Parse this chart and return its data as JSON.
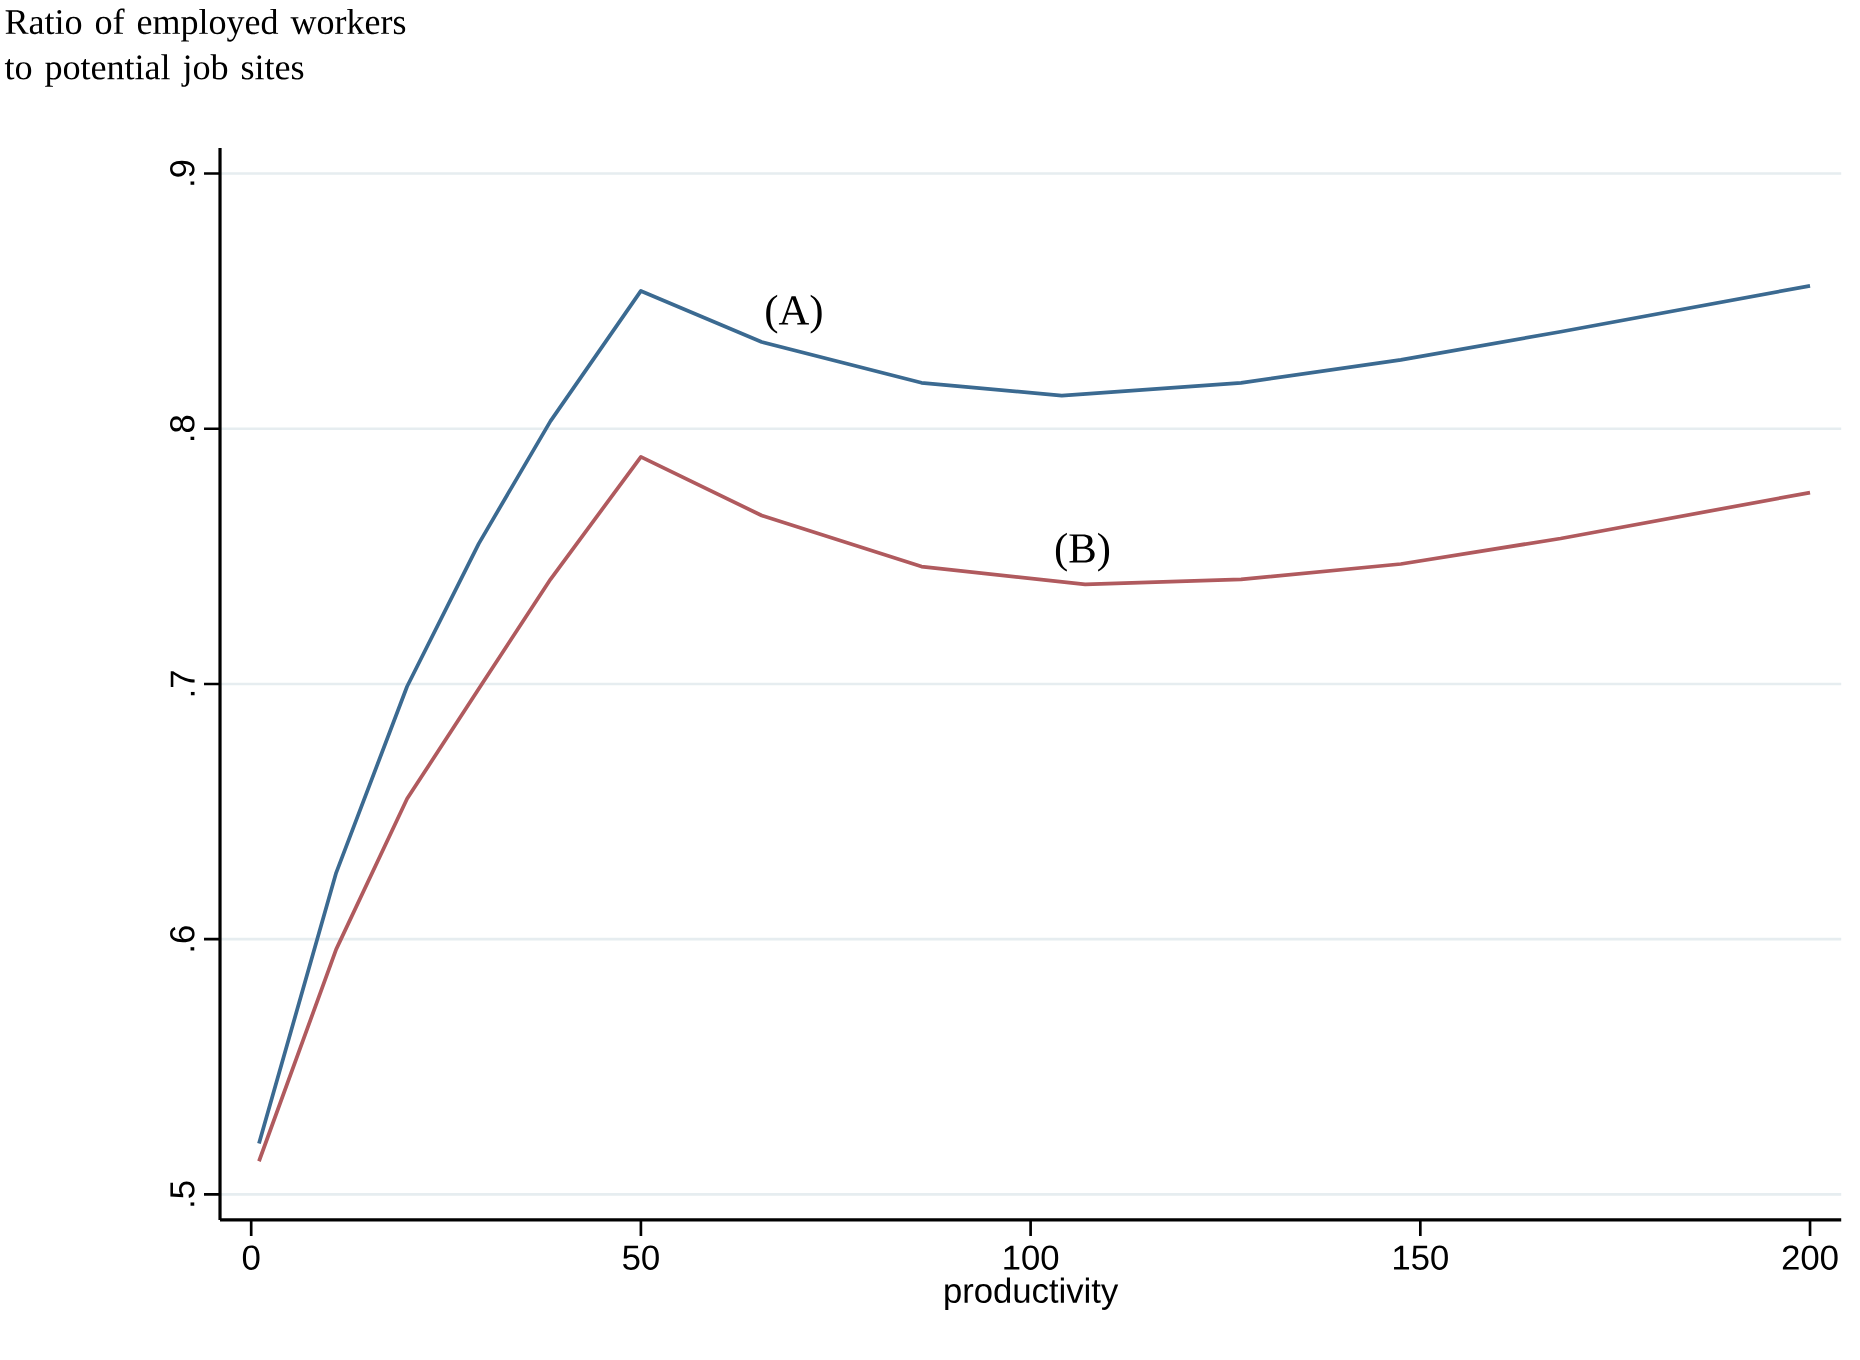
{
  "chart_data": {
    "type": "line",
    "xlabel": "productivity",
    "xlim": [
      -4,
      204
    ],
    "xticks": [
      0,
      50,
      100,
      150,
      200
    ],
    "ylim": [
      0.49,
      0.91
    ],
    "yticks": [
      {
        "value": 0.5,
        "label": ".5"
      },
      {
        "value": 0.6,
        "label": ".6"
      },
      {
        "value": 0.7,
        "label": ".7"
      },
      {
        "value": 0.8,
        "label": ".8"
      },
      {
        "value": 0.9,
        "label": ".9"
      }
    ],
    "grid": "y",
    "series": [
      {
        "color": "#3b6a91",
        "x": [
          1,
          10.9,
          20,
          29.2,
          38.4,
          50,
          65.5,
          86,
          104,
          127,
          147.5,
          168,
          200
        ],
        "values": [
          0.52,
          0.626,
          0.699,
          0.755,
          0.803,
          0.854,
          0.834,
          0.818,
          0.813,
          0.818,
          0.827,
          0.838,
          0.856
        ]
      },
      {
        "color": "#b05a5e",
        "x": [
          1,
          10.9,
          20,
          29.6,
          38.4,
          50,
          65.5,
          86,
          107,
          127,
          147.5,
          168,
          200
        ],
        "values": [
          0.513,
          0.596,
          0.655,
          0.7,
          0.741,
          0.789,
          0.766,
          0.746,
          0.739,
          0.741,
          0.747,
          0.757,
          0.775
        ]
      }
    ],
    "annotations": [
      "Ratio of employed workers to potential job sites",
      "(A)",
      "(B)"
    ]
  }
}
